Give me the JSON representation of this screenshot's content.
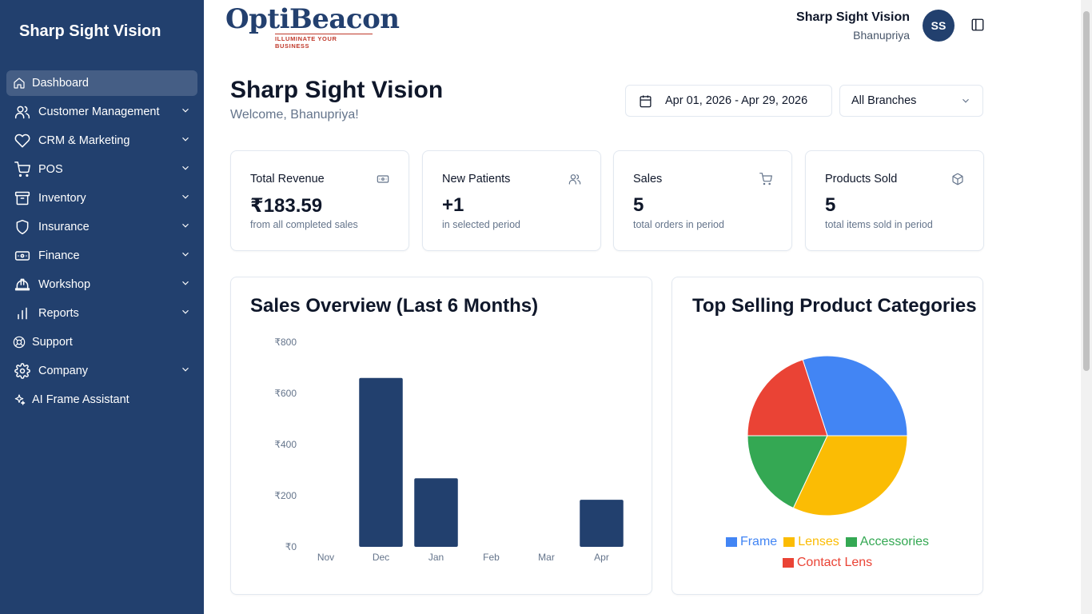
{
  "sidebar": {
    "brand": "Sharp Sight Vision",
    "items": [
      {
        "label": "Dashboard",
        "icon": "home-icon",
        "active": true,
        "expandable": false
      },
      {
        "label": "Customer Management",
        "icon": "users-icon",
        "expandable": true
      },
      {
        "label": "CRM & Marketing",
        "icon": "heart-icon",
        "expandable": true
      },
      {
        "label": "POS",
        "icon": "cart-icon",
        "expandable": true
      },
      {
        "label": "Inventory",
        "icon": "archive-icon",
        "expandable": true
      },
      {
        "label": "Insurance",
        "icon": "shield-icon",
        "expandable": true
      },
      {
        "label": "Finance",
        "icon": "banknote-icon",
        "expandable": true
      },
      {
        "label": "Workshop",
        "icon": "hardhat-icon",
        "expandable": true
      },
      {
        "label": "Reports",
        "icon": "bar-chart-icon",
        "expandable": true
      },
      {
        "label": "Support",
        "icon": "lifebuoy-icon",
        "expandable": false
      },
      {
        "label": "Company",
        "icon": "gear-icon",
        "expandable": true
      },
      {
        "label": "AI Frame Assistant",
        "icon": "sparkles-icon",
        "expandable": false
      }
    ]
  },
  "header": {
    "logo_text": "OptiBeacon",
    "logo_tagline": "ILLUMINATE YOUR BUSINESS",
    "user_name": "Sharp Sight Vision",
    "user_sub": "Bhanupriya",
    "avatar_initials": "SS"
  },
  "page": {
    "title": "Sharp Sight Vision",
    "subtitle": "Welcome, Bhanupriya!",
    "date_range": "Apr 01, 2026 - Apr 29, 2026",
    "branch": "All Branches"
  },
  "stats": [
    {
      "title": "Total Revenue",
      "value": "₹183.59",
      "sub": "from all completed sales",
      "icon": "banknote-icon"
    },
    {
      "title": "New Patients",
      "value": "+1",
      "sub": "in selected period",
      "icon": "users-icon"
    },
    {
      "title": "Sales",
      "value": "5",
      "sub": "total orders in period",
      "icon": "cart-icon"
    },
    {
      "title": "Products Sold",
      "value": "5",
      "sub": "total items sold in period",
      "icon": "package-icon"
    }
  ],
  "colors": {
    "sidebar_bg": "#22406e",
    "bar": "#22406e",
    "frame": "#4285f4",
    "lenses": "#fbbc04",
    "accessories": "#34a853",
    "contact_lens": "#ea4335"
  },
  "chart_data": [
    {
      "type": "bar",
      "title": "Sales Overview (Last 6 Months)",
      "categories": [
        "Nov",
        "Dec",
        "Jan",
        "Feb",
        "Mar",
        "Apr"
      ],
      "values": [
        0,
        660,
        268,
        0,
        0,
        184
      ],
      "ylim": [
        0,
        800
      ],
      "yticks": [
        0,
        200,
        400,
        600,
        800
      ],
      "ytick_labels": [
        "₹0",
        "₹200",
        "₹400",
        "₹600",
        "₹800"
      ],
      "grid": false,
      "legend": false
    },
    {
      "type": "pie",
      "title": "Top Selling Product Categories",
      "labels": [
        "Frame",
        "Contact Lens",
        "Accessories",
        "Lenses"
      ],
      "values": [
        30,
        20,
        18,
        32
      ],
      "colors": [
        "#4285f4",
        "#ea4335",
        "#34a853",
        "#fbbc04"
      ],
      "legend": "bottom",
      "legend_order": [
        "Frame",
        "Lenses",
        "Accessories",
        "Contact Lens"
      ]
    }
  ]
}
